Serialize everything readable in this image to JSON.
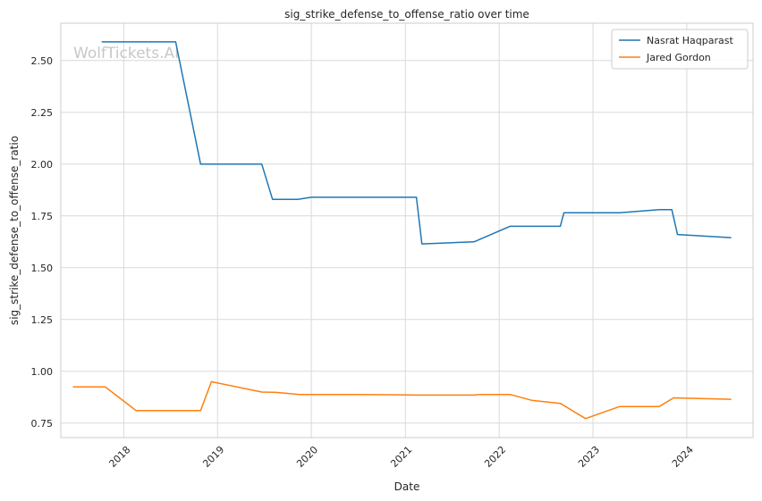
{
  "chart_data": {
    "type": "line",
    "title": "sig_strike_defense_to_offense_ratio over time",
    "xlabel": "Date",
    "ylabel": "sig_strike_defense_to_offense_ratio",
    "watermark": "WolfTickets.AI",
    "x_ticks": [
      "2018",
      "2019",
      "2020",
      "2021",
      "2022",
      "2023",
      "2024"
    ],
    "y_ticks": [
      "0.75",
      "1.00",
      "1.25",
      "1.50",
      "1.75",
      "2.00",
      "2.25",
      "2.50"
    ],
    "xlim": [
      "2017-05-01",
      "2024-09-15"
    ],
    "ylim": [
      0.68,
      2.68
    ],
    "grid": true,
    "legend_position": "top-right",
    "series": [
      {
        "name": "Nasrat Haqparast",
        "color": "#1f77b4",
        "points": [
          [
            "2017-10-07",
            2.59
          ],
          [
            "2018-07-22",
            2.59
          ],
          [
            "2018-10-27",
            2.0
          ],
          [
            "2019-06-22",
            2.0
          ],
          [
            "2019-08-03",
            1.83
          ],
          [
            "2019-11-09",
            1.83
          ],
          [
            "2020-01-01",
            1.84
          ],
          [
            "2020-07-11",
            1.84
          ],
          [
            "2020-09-27",
            1.84
          ],
          [
            "2021-02-13",
            1.84
          ],
          [
            "2021-03-06",
            1.615
          ],
          [
            "2021-09-25",
            1.625
          ],
          [
            "2022-02-12",
            1.7
          ],
          [
            "2022-08-27",
            1.7
          ],
          [
            "2022-09-10",
            1.765
          ],
          [
            "2023-04-15",
            1.765
          ],
          [
            "2023-09-16",
            1.78
          ],
          [
            "2023-11-04",
            1.78
          ],
          [
            "2023-11-26",
            1.66
          ],
          [
            "2024-06-22",
            1.645
          ]
        ]
      },
      {
        "name": "Jared Gordon",
        "color": "#ff7f0e",
        "points": [
          [
            "2017-06-17",
            0.925
          ],
          [
            "2017-10-21",
            0.925
          ],
          [
            "2018-02-18",
            0.81
          ],
          [
            "2018-10-27",
            0.81
          ],
          [
            "2018-12-08",
            0.95
          ],
          [
            "2019-06-22",
            0.9
          ],
          [
            "2019-08-17",
            0.898
          ],
          [
            "2019-11-16",
            0.888
          ],
          [
            "2020-01-01",
            0.888
          ],
          [
            "2020-06-27",
            0.888
          ],
          [
            "2020-10-24",
            0.887
          ],
          [
            "2021-02-13",
            0.885
          ],
          [
            "2021-05-22",
            0.885
          ],
          [
            "2021-09-25",
            0.885
          ],
          [
            "2021-10-16",
            0.888
          ],
          [
            "2022-02-12",
            0.888
          ],
          [
            "2022-05-07",
            0.86
          ],
          [
            "2022-08-27",
            0.845
          ],
          [
            "2022-12-03",
            0.772
          ],
          [
            "2023-04-15",
            0.83
          ],
          [
            "2023-09-16",
            0.83
          ],
          [
            "2023-11-11",
            0.872
          ],
          [
            "2024-06-22",
            0.865
          ]
        ]
      }
    ]
  }
}
